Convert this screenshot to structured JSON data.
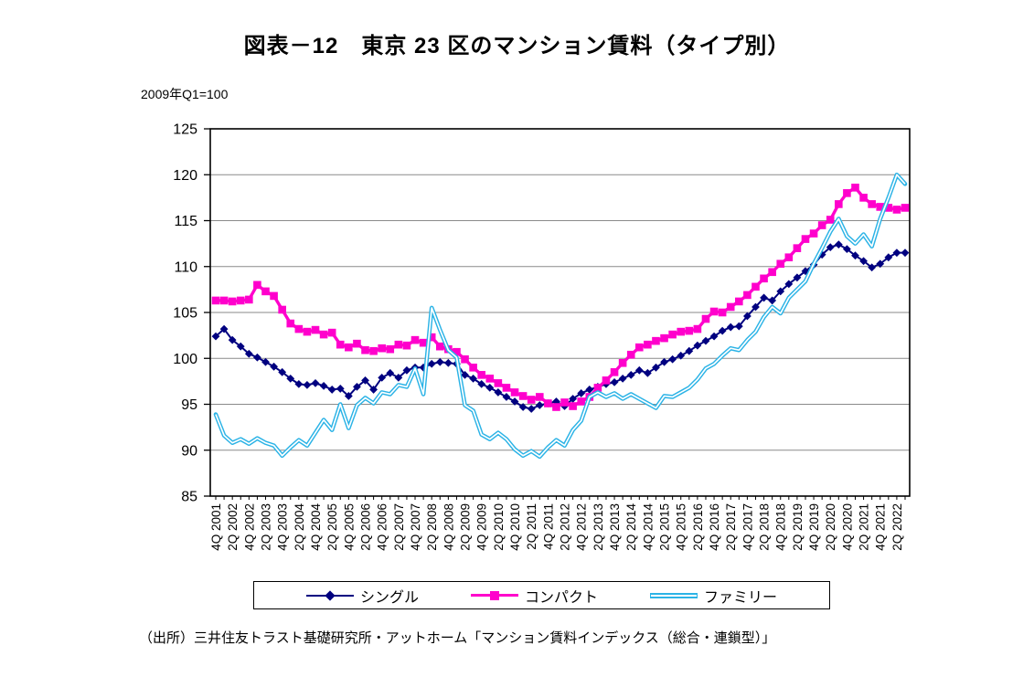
{
  "title": "図表－12　東京 23 区のマンション賃料（タイプ別）",
  "base_note": "2009年Q1=100",
  "source": "（出所）三井住友トラスト基礎研究所・アットホーム「マンション賃料インデックス（総合・連鎖型）」",
  "chart_data": {
    "type": "line",
    "title": "図表－12　東京 23 区のマンション賃料（タイプ別）",
    "subtitle": "2009年Q1=100",
    "ylim": [
      85,
      125
    ],
    "y_ticks": [
      85,
      90,
      95,
      100,
      105,
      110,
      115,
      120,
      125
    ],
    "grid": "horizontal",
    "legend_position": "bottom",
    "n_points": 84,
    "points_per_label": 2,
    "x_range": "4Q 2001 - 3Q 2022 (quarterly)",
    "x_tick_labels": [
      "4Q 2001",
      "2Q 2002",
      "4Q 2002",
      "2Q 2003",
      "4Q 2003",
      "2Q 2004",
      "4Q 2004",
      "2Q 2005",
      "4Q 2005",
      "2Q 2006",
      "4Q 2006",
      "2Q 2007",
      "4Q 2007",
      "2Q 2008",
      "4Q 2008",
      "2Q 2009",
      "4Q 2009",
      "2Q 2010",
      "4Q 2010",
      "2Q 2011",
      "4Q 2011",
      "2Q 2012",
      "4Q 2012",
      "2Q 2013",
      "4Q 2013",
      "2Q 2014",
      "4Q 2014",
      "2Q 2015",
      "4Q 2015",
      "2Q 2016",
      "4Q 2016",
      "2Q 2017",
      "4Q 2017",
      "2Q 2018",
      "4Q 2018",
      "2Q 2019",
      "4Q 2019",
      "2Q 2020",
      "4Q 2020",
      "2Q 2021",
      "4Q 2021",
      "2Q 2022"
    ],
    "series": [
      {
        "name": "シングル",
        "color": "#000080",
        "marker": "diamond",
        "line_width": 2,
        "values": [
          102.4,
          103.2,
          102.0,
          101.3,
          100.5,
          100.1,
          99.6,
          99.1,
          98.5,
          97.8,
          97.2,
          97.1,
          97.3,
          97.0,
          96.6,
          96.7,
          95.9,
          96.9,
          97.6,
          96.6,
          97.9,
          98.4,
          97.9,
          98.7,
          99.0,
          99.0,
          99.4,
          99.6,
          99.5,
          99.4,
          98.2,
          97.8,
          97.2,
          96.8,
          96.3,
          95.8,
          95.3,
          94.7,
          94.5,
          94.9,
          95.1,
          95.3,
          94.8,
          95.6,
          96.2,
          96.6,
          96.9,
          97.2,
          97.4,
          97.8,
          98.2,
          98.7,
          98.4,
          99.0,
          99.6,
          99.9,
          100.3,
          100.8,
          101.4,
          101.9,
          102.4,
          103.0,
          103.4,
          103.5,
          104.6,
          105.6,
          106.6,
          106.3,
          107.3,
          108.1,
          108.8,
          109.5,
          110.2,
          111.3,
          112.1,
          112.4,
          111.9,
          111.2,
          110.6,
          109.9,
          110.3,
          111.0,
          111.5,
          111.5
        ]
      },
      {
        "name": "コンパクト",
        "color": "#FF00CC",
        "marker": "square",
        "line_width": 3.4,
        "values": [
          106.3,
          106.3,
          106.2,
          106.3,
          106.4,
          108.0,
          107.3,
          106.8,
          105.3,
          103.8,
          103.2,
          102.9,
          103.1,
          102.6,
          102.8,
          101.5,
          101.2,
          101.6,
          100.9,
          100.8,
          101.1,
          101.0,
          101.5,
          101.4,
          102.0,
          101.7,
          102.3,
          101.3,
          101.0,
          100.7,
          99.9,
          99.0,
          98.2,
          97.8,
          97.3,
          96.8,
          96.3,
          95.9,
          95.5,
          95.8,
          95.1,
          94.7,
          95.2,
          94.8,
          95.3,
          95.8,
          96.8,
          97.6,
          98.5,
          99.5,
          100.4,
          101.2,
          101.5,
          101.9,
          102.2,
          102.6,
          102.9,
          103.0,
          103.2,
          104.3,
          105.1,
          105.0,
          105.6,
          106.2,
          106.9,
          107.8,
          108.7,
          109.4,
          110.3,
          111.0,
          112.0,
          113.0,
          113.6,
          114.5,
          115.1,
          116.8,
          118.0,
          118.6,
          117.5,
          116.8,
          116.5,
          116.4,
          116.2,
          116.4
        ]
      },
      {
        "name": "ファミリー",
        "color": "#2BB3E6",
        "marker": "none",
        "line_style": "double",
        "line_width": 4.6,
        "values": [
          93.9,
          91.6,
          90.8,
          91.2,
          90.7,
          91.3,
          90.8,
          90.5,
          89.4,
          90.3,
          91.1,
          90.5,
          91.9,
          93.3,
          92.2,
          95.0,
          92.4,
          94.9,
          95.7,
          95.1,
          96.3,
          96.1,
          97.1,
          96.9,
          98.9,
          96.1,
          105.5,
          103.1,
          100.9,
          100.1,
          94.9,
          94.3,
          91.7,
          91.2,
          91.9,
          91.2,
          90.1,
          89.4,
          89.9,
          89.3,
          90.3,
          91.1,
          90.5,
          92.2,
          93.2,
          95.8,
          96.3,
          95.8,
          96.2,
          95.6,
          96.1,
          95.6,
          95.1,
          94.6,
          95.9,
          95.8,
          96.3,
          96.8,
          97.7,
          98.9,
          99.4,
          100.3,
          101.1,
          100.9,
          102.0,
          102.9,
          104.5,
          105.6,
          104.9,
          106.6,
          107.5,
          108.4,
          110.3,
          112.0,
          113.8,
          115.2,
          113.3,
          112.5,
          113.5,
          112.2,
          115.2,
          117.5,
          120.0,
          119.0
        ]
      }
    ]
  }
}
